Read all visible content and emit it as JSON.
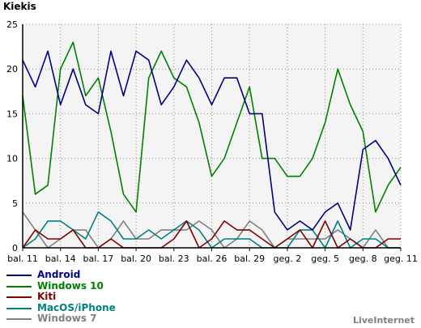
{
  "title": "Kiekis",
  "brand": "LiveInternet",
  "chart_data": {
    "type": "line",
    "x": [
      "bal. 11",
      "bal. 12",
      "bal. 13",
      "bal. 14",
      "bal. 15",
      "bal. 16",
      "bal. 17",
      "bal. 18",
      "bal. 19",
      "bal. 20",
      "bal. 21",
      "bal. 22",
      "bal. 23",
      "bal. 24",
      "bal. 25",
      "bal. 26",
      "bal. 27",
      "bal. 28",
      "bal. 29",
      "bal. 30",
      "geg. 1",
      "geg. 2",
      "geg. 3",
      "geg. 4",
      "geg. 5",
      "geg. 6",
      "geg. 7",
      "geg. 8",
      "geg. 9",
      "geg. 10",
      "geg. 11"
    ],
    "xtick_labels": [
      "bal. 11",
      "bal. 14",
      "bal. 17",
      "bal. 20",
      "bal. 23",
      "bal. 26",
      "bal. 29",
      "geg. 2",
      "geg. 5",
      "geg. 8",
      "geg. 11"
    ],
    "yticks": [
      0,
      5,
      10,
      15,
      20,
      25
    ],
    "ylim": [
      0,
      25
    ],
    "grid": true,
    "legend_position": "bottom-left",
    "series": [
      {
        "name": "Android",
        "color": "#000080",
        "values": [
          21,
          18,
          22,
          16,
          20,
          16,
          15,
          22,
          17,
          22,
          21,
          16,
          18,
          21,
          19,
          16,
          19,
          19,
          15,
          15,
          4,
          2,
          3,
          2,
          4,
          5,
          2,
          11,
          12,
          10,
          7
        ]
      },
      {
        "name": "Windows 10",
        "color": "#008000",
        "values": [
          17,
          6,
          7,
          20,
          23,
          17,
          19,
          13,
          6,
          4,
          19,
          22,
          19,
          18,
          14,
          8,
          10,
          14,
          18,
          10,
          10,
          8,
          8,
          10,
          14,
          20,
          16,
          13,
          4,
          7,
          9
        ]
      },
      {
        "name": "Kiti",
        "color": "#800000",
        "values": [
          0,
          2,
          1,
          1,
          2,
          0,
          0,
          1,
          0,
          0,
          0,
          0,
          1,
          3,
          0,
          1,
          3,
          2,
          2,
          1,
          0,
          1,
          2,
          0,
          3,
          0,
          1,
          0,
          0,
          1,
          1
        ]
      },
      {
        "name": "MacOS/iPhone",
        "color": "#008080",
        "values": [
          0,
          1,
          3,
          3,
          2,
          1,
          4,
          3,
          1,
          1,
          2,
          1,
          2,
          3,
          2,
          0,
          1,
          1,
          1,
          0,
          0,
          0,
          2,
          2,
          0,
          3,
          0,
          1,
          1,
          0,
          0
        ]
      },
      {
        "name": "Windows 7",
        "color": "#808080",
        "values": [
          4,
          2,
          0,
          1,
          2,
          2,
          0,
          1,
          3,
          1,
          1,
          2,
          2,
          2,
          3,
          2,
          0,
          1,
          3,
          2,
          0,
          1,
          1,
          1,
          1,
          2,
          1,
          0,
          2,
          0,
          0
        ]
      }
    ]
  }
}
